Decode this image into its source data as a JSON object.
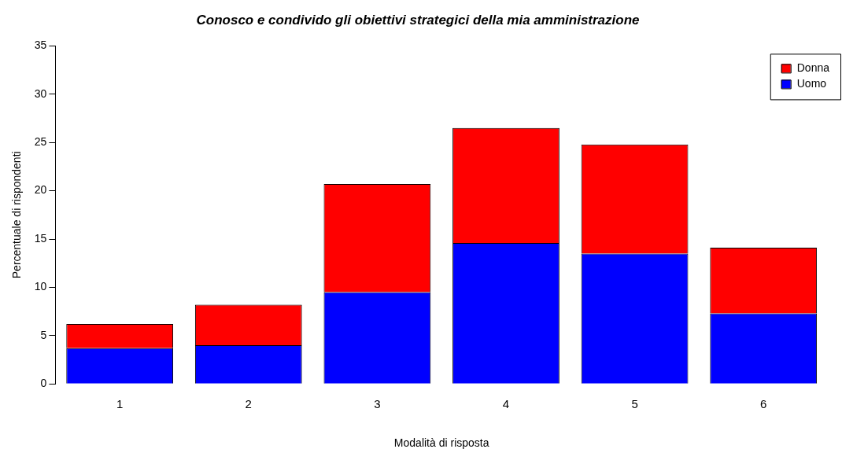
{
  "chart_data": {
    "type": "bar",
    "title": "Conosco e condivido gli obiettivi strategici della mia amministrazione",
    "xlabel": "Modalità di risposta",
    "ylabel": "Percentuale di rispondenti",
    "categories": [
      "1",
      "2",
      "3",
      "4",
      "5",
      "6"
    ],
    "stacked": true,
    "series": [
      {
        "name": "Uomo",
        "color": "#0000ff",
        "values": [
          3.7,
          4.0,
          9.5,
          14.6,
          13.5,
          7.3
        ]
      },
      {
        "name": "Donna",
        "color": "#ff0000",
        "values": [
          2.5,
          4.2,
          11.2,
          11.9,
          11.3,
          6.8
        ]
      }
    ],
    "ylim": [
      0,
      35
    ],
    "yticks": [
      0,
      5,
      10,
      15,
      20,
      25,
      30,
      35
    ],
    "grid": false,
    "legend": "top right"
  }
}
